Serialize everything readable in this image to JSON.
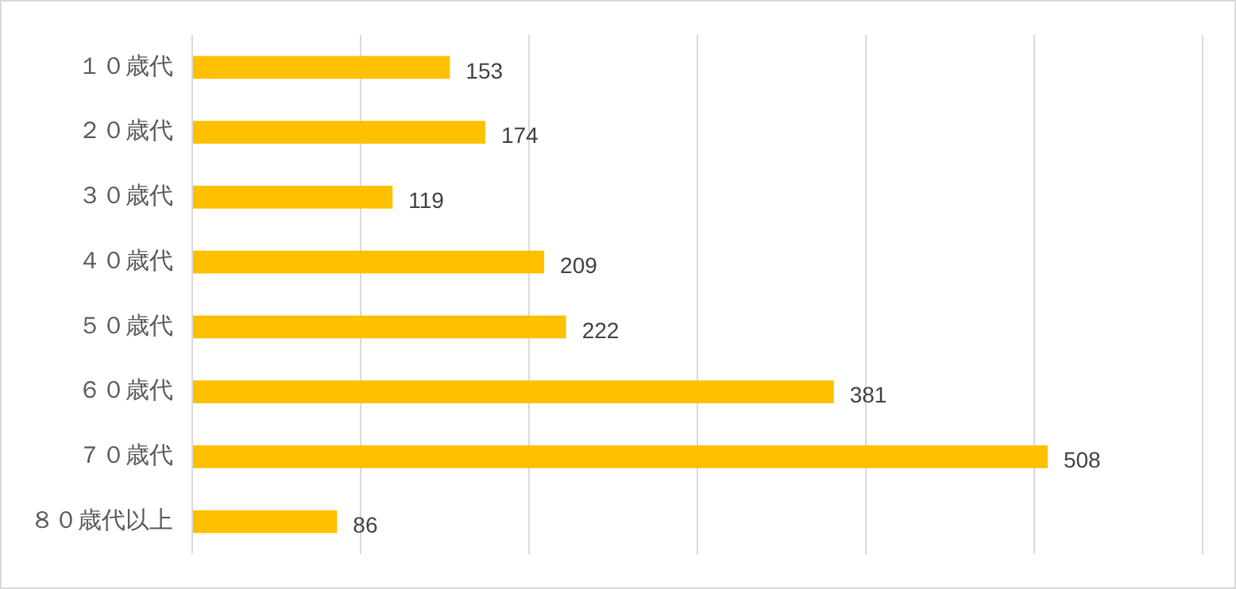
{
  "chart_data": {
    "type": "bar",
    "orientation": "horizontal",
    "categories": [
      "１０歳代",
      "２０歳代",
      "３０歳代",
      "４０歳代",
      "５０歳代",
      "６０歳代",
      "７０歳代",
      "８０歳代以上"
    ],
    "values": [
      153,
      174,
      119,
      209,
      222,
      381,
      508,
      86
    ],
    "color": "#ffc000",
    "xlim": [
      0,
      600
    ],
    "xticks": [
      {
        "value": 0,
        "label": null
      },
      {
        "value": 100,
        "label": null
      },
      {
        "value": 200,
        "label": null
      },
      {
        "value": 300,
        "label": null
      },
      {
        "value": 400,
        "label": null
      },
      {
        "value": 500,
        "label": null
      },
      {
        "value": 600,
        "label": null
      }
    ],
    "grid": "x",
    "tick_labels": "y",
    "data_labels": true,
    "legend": false
  }
}
